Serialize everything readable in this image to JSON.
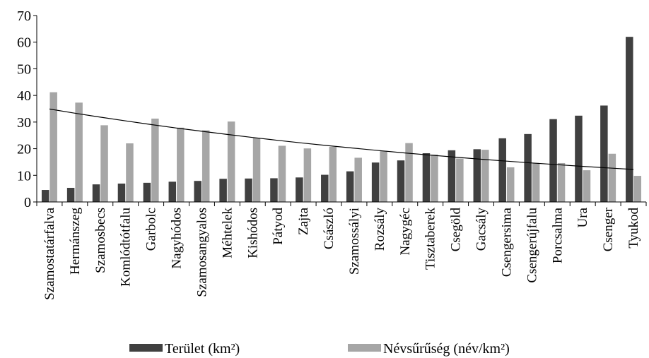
{
  "chart_data": {
    "type": "bar",
    "ylim": [
      0,
      70
    ],
    "yticks": [
      0,
      10,
      20,
      30,
      40,
      50,
      60,
      70
    ],
    "grid": false,
    "legend_position": "bottom",
    "categories": [
      "Szamostatárfalva",
      "Hermánszeg",
      "Szamosbecs",
      "Komlódtótfalu",
      "Garbolc",
      "Nagyhódos",
      "Szamosangyalos",
      "Méhtelek",
      "Kishódos",
      "Pátyod",
      "Zajta",
      "Császló",
      "Szamossályi",
      "Rozsály",
      "Nagygéc",
      "Tisztaberek",
      "Csegöld",
      "Gacsály",
      "Csengersima",
      "Csengerújfalu",
      "Porcsalma",
      "Ura",
      "Csenger",
      "Tyukod"
    ],
    "series": [
      {
        "name": "Terület (km²)",
        "color": "#404040",
        "values": [
          4.5,
          5.3,
          6.6,
          6.9,
          7.2,
          7.6,
          7.9,
          8.7,
          8.8,
          8.9,
          9.2,
          10.2,
          11.5,
          14.8,
          15.6,
          18.3,
          19.4,
          19.8,
          23.9,
          25.5,
          31.1,
          32.4,
          36.2,
          62.0
        ]
      },
      {
        "name": "Névsűrűség (név/km²)",
        "color": "#a6a6a6",
        "values": [
          41.2,
          37.3,
          28.8,
          22.0,
          31.3,
          27.9,
          26.9,
          30.2,
          24.0,
          21.1,
          20.1,
          20.7,
          16.6,
          19.2,
          22.1,
          17.8,
          16.3,
          19.6,
          13.0,
          14.5,
          14.6,
          11.9,
          18.1,
          9.8
        ]
      }
    ],
    "trendline": {
      "type": "exponential",
      "series": "Névsűrűség (név/km²)",
      "start": 34.9,
      "end": 12.2,
      "color": "#000000"
    }
  }
}
